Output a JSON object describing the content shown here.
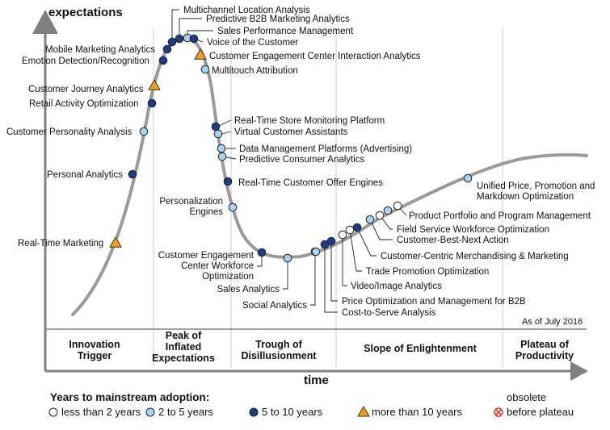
{
  "y_axis_label": "expectations",
  "x_axis_label": "time",
  "as_of": "As of July 2016",
  "phases": [
    {
      "lines": [
        "Innovation",
        "Trigger"
      ]
    },
    {
      "lines": [
        "Peak of",
        "Inflated",
        "Expectations"
      ]
    },
    {
      "lines": [
        "Trough of",
        "Disillusionment"
      ]
    },
    {
      "lines": [
        "Slope of Enlightenment"
      ]
    },
    {
      "lines": [
        "Plateau of",
        "Productivity"
      ]
    }
  ],
  "legend": {
    "title": "Years to mainstream adoption:",
    "items": [
      {
        "label": "less than 2 years",
        "marker": "open-circle",
        "color": "#ffffff"
      },
      {
        "label": "2 to 5 years",
        "marker": "circle",
        "color": "#a9d3f0"
      },
      {
        "label": "5 to 10 years",
        "marker": "circle",
        "color": "#1f3b88"
      },
      {
        "label": "more than 10 years",
        "marker": "triangle",
        "color": "#f5a01a"
      },
      {
        "label_lines": [
          "obsolete",
          "before plateau"
        ],
        "marker": "x-circle",
        "color": "#e03030"
      }
    ]
  },
  "colors": {
    "curve": "#9a9a9a",
    "axis": "#808080",
    "gridline": "#cccccc",
    "lt2": "#ffffff",
    "2to5": "#a9d3f0",
    "5to10": "#1f3b88",
    "gt10": "#f5a01a",
    "obsolete": "#e03030"
  },
  "technologies": [
    {
      "label": "Real-Time Marketing",
      "category": "gt10"
    },
    {
      "label": "Personal Analytics",
      "category": "5to10"
    },
    {
      "label": "Customer Personality Analysis",
      "category": "2to5"
    },
    {
      "label": "Retail Activity Optimization",
      "category": "5to10"
    },
    {
      "label": "Customer Journey Analytics",
      "category": "gt10"
    },
    {
      "label": "Emotion Detection/Recognition",
      "category": "5to10"
    },
    {
      "label": "Mobile Marketing Analytics",
      "category": "5to10"
    },
    {
      "label": "Multichannel Location Analysis",
      "category": "5to10"
    },
    {
      "label": "Predictive B2B Marketing Analytics",
      "category": "5to10"
    },
    {
      "label": "Sales Performance Management",
      "category": "2to5"
    },
    {
      "label": "Voice of the Customer",
      "category": "5to10"
    },
    {
      "label": "Customer Engagement Center Interaction Analytics",
      "category": "gt10"
    },
    {
      "label": "Multitouch Attribution",
      "category": "2to5"
    },
    {
      "label": "Real-Time Store Monitoring Platform",
      "category": "5to10"
    },
    {
      "label": "Virtual Customer Assistants",
      "category": "2to5"
    },
    {
      "label": "Data Management Platforms (Advertising)",
      "category": "2to5"
    },
    {
      "label": "Predictive Consumer Analytics",
      "category": "2to5"
    },
    {
      "label": "Real-Time Customer Offer Engines",
      "category": "5to10"
    },
    {
      "label": "Personalization Engines",
      "category": "2to5"
    },
    {
      "label": "Customer Engagement Center Workforce Optimization",
      "category": "5to10"
    },
    {
      "label": "Sales Analytics",
      "category": "2to5"
    },
    {
      "label": "Social Analytics",
      "category": "2to5"
    },
    {
      "label": "Cost-to-Serve Analysis",
      "category": "5to10"
    },
    {
      "label": "Price Optimization and Management for B2B",
      "category": "5to10"
    },
    {
      "label": "Video/Image Analytics",
      "category": "lt2"
    },
    {
      "label": "Trade Promotion Optimization",
      "category": "lt2"
    },
    {
      "label": "Customer-Centric Merchandising & Marketing",
      "category": "5to10"
    },
    {
      "label": "Customer-Best-Next Action",
      "category": "2to5"
    },
    {
      "label": "Field Service Workforce Optimization",
      "category": "lt2"
    },
    {
      "label": "Product Portfolio and Program Management",
      "category": "lt2"
    },
    {
      "label": "Unified Price, Promotion and Markdown Optimization",
      "category": "2to5"
    }
  ]
}
